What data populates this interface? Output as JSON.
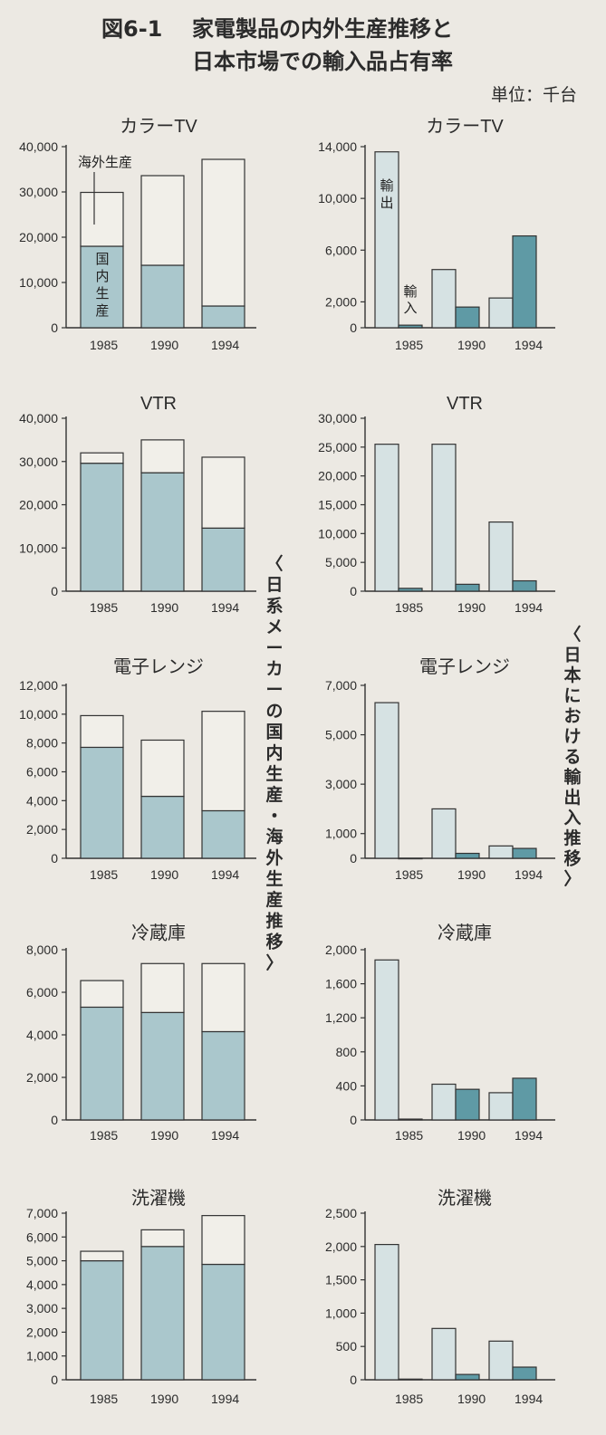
{
  "figure": {
    "number": "図6-1",
    "title_line1": "家電製品の内外生産推移と",
    "title_line2": "日本市場での輸入品占有率",
    "unit": "単位：千台",
    "left_column_caption": "〈日系メーカーの国内生産・海外生産推移〉",
    "right_column_caption": "〈日本における輸出入推移〉",
    "colors": {
      "domestic": "#aac7cc",
      "export": "#d6e2e3",
      "import": "#5f9aa5",
      "outline": "#333333"
    }
  },
  "chart_data": [
    {
      "id": "tv-production",
      "type": "bar",
      "stacked": true,
      "title": "カラーTV",
      "categories": [
        "1985",
        "1990",
        "1994"
      ],
      "series": [
        {
          "name": "国内生産",
          "values": [
            18000,
            13800,
            4800
          ]
        },
        {
          "name": "海外生産",
          "values": [
            11900,
            19800,
            32400
          ]
        }
      ],
      "ylim": [
        0,
        40000
      ],
      "yticks": [
        0,
        10000,
        20000,
        30000,
        40000
      ],
      "grid": false,
      "annotations": [
        "海外生産",
        "国内生産"
      ]
    },
    {
      "id": "tv-trade",
      "type": "bar",
      "stacked": false,
      "title": "カラーTV",
      "categories": [
        "1985",
        "1990",
        "1994"
      ],
      "series": [
        {
          "name": "輸出",
          "values": [
            13600,
            4500,
            2300
          ]
        },
        {
          "name": "輸入",
          "values": [
            200,
            1600,
            7100
          ]
        }
      ],
      "ylim": [
        0,
        14000
      ],
      "yticks": [
        0,
        2000,
        6000,
        10000,
        14000
      ],
      "grid": false,
      "annotations": [
        "輸出",
        "輸入"
      ]
    },
    {
      "id": "vtr-production",
      "type": "bar",
      "stacked": true,
      "title": "VTR",
      "categories": [
        "1985",
        "1990",
        "1994"
      ],
      "series": [
        {
          "name": "国内生産",
          "values": [
            29600,
            27400,
            14600
          ]
        },
        {
          "name": "海外生産",
          "values": [
            2400,
            7600,
            16400
          ]
        }
      ],
      "ylim": [
        0,
        40000
      ],
      "yticks": [
        0,
        10000,
        20000,
        30000,
        40000
      ],
      "grid": false
    },
    {
      "id": "vtr-trade",
      "type": "bar",
      "stacked": false,
      "title": "VTR",
      "categories": [
        "1985",
        "1990",
        "1994"
      ],
      "series": [
        {
          "name": "輸出",
          "values": [
            25500,
            25500,
            12000
          ]
        },
        {
          "name": "輸入",
          "values": [
            500,
            1200,
            1800
          ]
        }
      ],
      "ylim": [
        0,
        30000
      ],
      "yticks": [
        0,
        5000,
        10000,
        15000,
        20000,
        25000,
        30000
      ],
      "grid": false
    },
    {
      "id": "microwave-production",
      "type": "bar",
      "stacked": true,
      "title": "電子レンジ",
      "categories": [
        "1985",
        "1990",
        "1994"
      ],
      "series": [
        {
          "name": "国内生産",
          "values": [
            7700,
            4300,
            3300
          ]
        },
        {
          "name": "海外生産",
          "values": [
            2200,
            3900,
            6900
          ]
        }
      ],
      "ylim": [
        0,
        12000
      ],
      "yticks": [
        0,
        2000,
        4000,
        6000,
        8000,
        10000,
        12000
      ],
      "grid": false
    },
    {
      "id": "microwave-trade",
      "type": "bar",
      "stacked": false,
      "title": "電子レンジ",
      "categories": [
        "1985",
        "1990",
        "1994"
      ],
      "series": [
        {
          "name": "輸出",
          "values": [
            6300,
            2000,
            500
          ]
        },
        {
          "name": "輸入",
          "values": [
            0,
            200,
            400
          ]
        }
      ],
      "ylim": [
        0,
        7000
      ],
      "yticks": [
        0,
        1000,
        3000,
        5000,
        7000
      ],
      "grid": false
    },
    {
      "id": "fridge-production",
      "type": "bar",
      "stacked": true,
      "title": "冷蔵庫",
      "categories": [
        "1985",
        "1990",
        "1994"
      ],
      "series": [
        {
          "name": "国内生産",
          "values": [
            5300,
            5050,
            4150
          ]
        },
        {
          "name": "海外生産",
          "values": [
            1250,
            2300,
            3200
          ]
        }
      ],
      "ylim": [
        0,
        8000
      ],
      "yticks": [
        0,
        2000,
        4000,
        6000,
        8000
      ],
      "grid": false
    },
    {
      "id": "fridge-trade",
      "type": "bar",
      "stacked": false,
      "title": "冷蔵庫",
      "categories": [
        "1985",
        "1990",
        "1994"
      ],
      "series": [
        {
          "name": "輸出",
          "values": [
            1880,
            420,
            320
          ]
        },
        {
          "name": "輸入",
          "values": [
            10,
            360,
            490
          ]
        }
      ],
      "ylim": [
        0,
        2000
      ],
      "yticks": [
        0,
        400,
        800,
        1200,
        1600,
        2000
      ],
      "grid": false
    },
    {
      "id": "washer-production",
      "type": "bar",
      "stacked": true,
      "title": "洗濯機",
      "categories": [
        "1985",
        "1990",
        "1994"
      ],
      "series": [
        {
          "name": "国内生産",
          "values": [
            5000,
            5600,
            4850
          ]
        },
        {
          "name": "海外生産",
          "values": [
            400,
            700,
            2050
          ]
        }
      ],
      "ylim": [
        0,
        7000
      ],
      "yticks": [
        0,
        1000,
        2000,
        3000,
        4000,
        5000,
        6000,
        7000
      ],
      "grid": false
    },
    {
      "id": "washer-trade",
      "type": "bar",
      "stacked": false,
      "title": "洗濯機",
      "categories": [
        "1985",
        "1990",
        "1994"
      ],
      "series": [
        {
          "name": "輸出",
          "values": [
            2030,
            770,
            580
          ]
        },
        {
          "name": "輸入",
          "values": [
            10,
            80,
            190
          ]
        }
      ],
      "ylim": [
        0,
        2500
      ],
      "yticks": [
        0,
        500,
        1000,
        1500,
        2000,
        2500
      ],
      "grid": false
    }
  ]
}
